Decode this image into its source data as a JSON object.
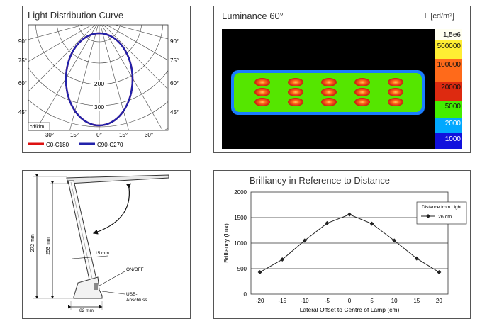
{
  "panels": {
    "ldc": {
      "title": "Light Distribution Curve",
      "radial_labels": [
        "200",
        "300"
      ],
      "angle_labels_left": [
        "90°",
        "75°",
        "60°",
        "45°"
      ],
      "angle_labels_right": [
        "90°",
        "75°",
        "60°",
        "45°"
      ],
      "bottom_labels": [
        "30°",
        "15°",
        "0°",
        "15°",
        "30°"
      ],
      "unit_box": "cd/klm",
      "legend": [
        {
          "label": "C0-C180",
          "color": "#dd1111"
        },
        {
          "label": "C90-C270",
          "color": "#2222aa"
        }
      ]
    },
    "luminance": {
      "title": "Luminance 60°",
      "scale_title": "L [cd/m²]",
      "scale": [
        {
          "label": "1,5e6",
          "color": "#fffff0"
        },
        {
          "label": "500000",
          "color": "#ffee33"
        },
        {
          "label": "100000",
          "color": "#ff6a1a"
        },
        {
          "label": "20000",
          "color": "#dd2a10"
        },
        {
          "label": "5000",
          "color": "#44ee00"
        },
        {
          "label": "2000",
          "color": "#00a8ff"
        },
        {
          "label": "1000",
          "color": "#1111dd"
        }
      ]
    },
    "dimensions": {
      "labels": {
        "height_total": "272 mm",
        "height_arm": "253 mm",
        "thickness": "15 mm",
        "switch": "ON/OFF",
        "usb_line1": "USB-",
        "usb_line2": "Anschluss",
        "base_width": "82 mm"
      }
    },
    "brilliancy": {
      "title": "Brilliancy in Reference to Distance"
    }
  },
  "chart_data": {
    "type": "line",
    "title": "Brilliancy in Reference to Distance",
    "xlabel": "Lateral Offset to Centre of Lamp (cm)",
    "ylabel": "Brilliancy (Lux)",
    "x": [
      -20,
      -15,
      -10,
      -5,
      0,
      5,
      10,
      15,
      20
    ],
    "xticks": [
      -20,
      -15,
      -10,
      -5,
      0,
      5,
      10,
      15,
      20
    ],
    "yticks": [
      0,
      500,
      1000,
      1500,
      2000
    ],
    "xlim": [
      -22,
      22
    ],
    "ylim": [
      0,
      2000
    ],
    "grid": "horizontal",
    "legend_title": "Distance from Light",
    "legend_position": "top-right",
    "series": [
      {
        "name": "26 cm",
        "color": "#222222",
        "values": [
          430,
          680,
          1050,
          1390,
          1560,
          1380,
          1050,
          700,
          430
        ]
      }
    ]
  }
}
